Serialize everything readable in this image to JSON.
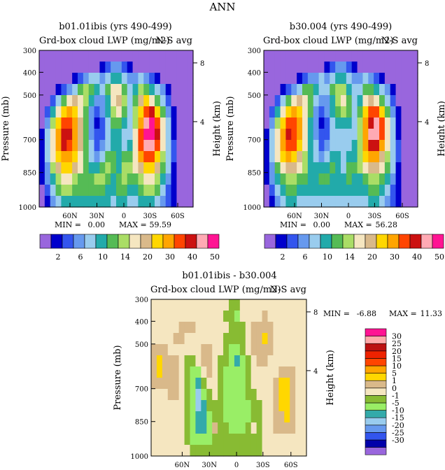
{
  "figure_title": "ANN",
  "palette_top": [
    "#9966dd",
    "#0000cc",
    "#3355ee",
    "#6699ee",
    "#99ccee",
    "#22aaaa",
    "#55bb55",
    "#aadd66",
    "#f5e6c0",
    "#d9b98a",
    "#ffd700",
    "#ffa500",
    "#ff4500",
    "#cc1111",
    "#ffaab4",
    "#ff1493"
  ],
  "palette_diff": [
    "#9966dd",
    "#0000aa",
    "#3355ee",
    "#6699ee",
    "#99ccee",
    "#33aaaa",
    "#99ee66",
    "#88bb33",
    "#f5e6c0",
    "#d9b98a",
    "#ffd700",
    "#ffa500",
    "#ff4500",
    "#ee2200",
    "#bb1111",
    "#ffaaaa",
    "#ff1493"
  ],
  "chart_data": [
    {
      "type": "heatmap",
      "title": "b01.01ibis (yrs 490-499)",
      "subtitle_left": "Grd-box cloud LWP (mg/m2)",
      "subtitle_right": "N-S avg",
      "ylabel": "Pressure (mb)",
      "y2label": "Height (km)",
      "xticks": [
        "60N",
        "30N",
        "0",
        "30S",
        "60S"
      ],
      "yticks": [
        "300",
        "400",
        "500",
        "700",
        "850",
        "1000"
      ],
      "y2ticks": [
        "8",
        "4"
      ],
      "min_label": "MIN =",
      "min_value": "0.00",
      "max_label": "MAX =",
      "max_value": "59.59",
      "levels": [
        "2",
        "6",
        "10",
        "14",
        "20",
        "30",
        "40",
        "50"
      ],
      "cells": [
        [
          0,
          0,
          0,
          0,
          0,
          0,
          0,
          0,
          0,
          0,
          0,
          0,
          0,
          0,
          0,
          0,
          0,
          0,
          0,
          0,
          0,
          0,
          0,
          0,
          0,
          0,
          0,
          0
        ],
        [
          0,
          0,
          0,
          0,
          0,
          0,
          0,
          0,
          0,
          0,
          0,
          1,
          2,
          3,
          3,
          2,
          1,
          0,
          0,
          0,
          0,
          0,
          0,
          0,
          0,
          0,
          0,
          0
        ],
        [
          0,
          0,
          0,
          0,
          0,
          0,
          1,
          2,
          3,
          4,
          4,
          3,
          4,
          5,
          5,
          4,
          3,
          3,
          4,
          3,
          2,
          1,
          0,
          0,
          0,
          0,
          0,
          0
        ],
        [
          0,
          0,
          0,
          1,
          2,
          3,
          4,
          6,
          7,
          6,
          5,
          4,
          6,
          8,
          8,
          6,
          4,
          5,
          7,
          6,
          5,
          4,
          3,
          1,
          0,
          0,
          0,
          0
        ],
        [
          0,
          0,
          2,
          4,
          6,
          8,
          9,
          8,
          7,
          5,
          3,
          3,
          5,
          8,
          9,
          7,
          4,
          6,
          9,
          10,
          8,
          6,
          4,
          2,
          0,
          0,
          0,
          0
        ],
        [
          0,
          2,
          5,
          8,
          10,
          11,
          10,
          8,
          6,
          3,
          2,
          3,
          5,
          7,
          8,
          6,
          4,
          7,
          10,
          12,
          13,
          10,
          6,
          3,
          1,
          0,
          0,
          0
        ],
        [
          0,
          3,
          7,
          10,
          12,
          12,
          11,
          9,
          6,
          3,
          1,
          2,
          4,
          6,
          6,
          5,
          4,
          7,
          11,
          14,
          15,
          12,
          8,
          4,
          1,
          0,
          0,
          0
        ],
        [
          1,
          4,
          8,
          11,
          13,
          13,
          11,
          9,
          6,
          3,
          2,
          2,
          4,
          5,
          5,
          4,
          4,
          8,
          12,
          15,
          15,
          13,
          8,
          4,
          1,
          0,
          0,
          0
        ],
        [
          1,
          4,
          8,
          11,
          13,
          12,
          11,
          9,
          6,
          4,
          2,
          3,
          4,
          5,
          5,
          4,
          5,
          8,
          12,
          14,
          14,
          12,
          8,
          4,
          2,
          0,
          0,
          0
        ],
        [
          1,
          4,
          8,
          10,
          11,
          11,
          10,
          8,
          6,
          4,
          3,
          4,
          6,
          6,
          5,
          6,
          6,
          8,
          11,
          12,
          12,
          10,
          7,
          4,
          2,
          0,
          0,
          0
        ],
        [
          1,
          3,
          7,
          9,
          10,
          10,
          9,
          8,
          6,
          5,
          5,
          6,
          7,
          6,
          5,
          7,
          7,
          8,
          9,
          10,
          10,
          9,
          6,
          4,
          1,
          0,
          0,
          0
        ],
        [
          1,
          3,
          5,
          7,
          8,
          8,
          7,
          6,
          6,
          6,
          7,
          7,
          6,
          5,
          6,
          7,
          6,
          6,
          7,
          8,
          8,
          7,
          5,
          3,
          1,
          0,
          0,
          0
        ],
        [
          0,
          2,
          4,
          6,
          7,
          7,
          6,
          6,
          6,
          6,
          6,
          6,
          5,
          5,
          6,
          6,
          5,
          5,
          6,
          7,
          7,
          6,
          4,
          2,
          1,
          0,
          0,
          0
        ],
        [
          0,
          1,
          3,
          4,
          5,
          5,
          5,
          5,
          5,
          5,
          5,
          5,
          5,
          4,
          5,
          5,
          4,
          4,
          5,
          5,
          5,
          4,
          3,
          2,
          1,
          0,
          0,
          0
        ]
      ]
    },
    {
      "type": "heatmap",
      "title": "b30.004 (yrs 490-499)",
      "subtitle_left": "Grd-box cloud LWP (mg/m2)",
      "subtitle_right": "N-S avg",
      "ylabel": "Pressure (mb)",
      "y2label": "Height (km)",
      "xticks": [
        "60N",
        "30N",
        "0",
        "30S",
        "60S"
      ],
      "yticks": [
        "300",
        "400",
        "500",
        "700",
        "850",
        "1000"
      ],
      "y2ticks": [
        "8",
        "4"
      ],
      "min_label": "MIN =",
      "min_value": "0.00",
      "max_label": "MAX =",
      "max_value": "56.28",
      "levels": [
        "2",
        "6",
        "10",
        "14",
        "20",
        "30",
        "40",
        "50"
      ],
      "cells": [
        [
          0,
          0,
          0,
          0,
          0,
          0,
          0,
          0,
          0,
          0,
          0,
          0,
          0,
          0,
          0,
          0,
          0,
          0,
          0,
          0,
          0,
          0,
          0,
          0,
          0,
          0,
          0,
          0
        ],
        [
          0,
          0,
          0,
          0,
          0,
          0,
          0,
          0,
          0,
          0,
          0,
          1,
          2,
          3,
          3,
          2,
          1,
          0,
          0,
          0,
          0,
          0,
          0,
          0,
          0,
          0,
          0,
          0
        ],
        [
          0,
          0,
          0,
          0,
          0,
          0,
          1,
          2,
          3,
          3,
          4,
          3,
          4,
          5,
          5,
          4,
          3,
          3,
          4,
          3,
          2,
          1,
          0,
          0,
          0,
          0,
          0,
          0
        ],
        [
          0,
          0,
          0,
          1,
          2,
          3,
          4,
          6,
          6,
          5,
          4,
          4,
          6,
          7,
          7,
          5,
          4,
          4,
          6,
          6,
          5,
          4,
          3,
          1,
          0,
          0,
          0,
          0
        ],
        [
          0,
          0,
          2,
          4,
          6,
          8,
          9,
          8,
          6,
          4,
          3,
          3,
          5,
          7,
          8,
          6,
          4,
          5,
          8,
          9,
          8,
          6,
          4,
          2,
          0,
          0,
          0,
          0
        ],
        [
          0,
          2,
          5,
          8,
          10,
          11,
          10,
          8,
          6,
          3,
          2,
          3,
          5,
          6,
          7,
          6,
          4,
          6,
          10,
          12,
          12,
          10,
          6,
          3,
          1,
          0,
          0,
          0
        ],
        [
          0,
          3,
          7,
          10,
          12,
          12,
          11,
          8,
          5,
          3,
          1,
          2,
          4,
          5,
          5,
          5,
          4,
          7,
          11,
          13,
          14,
          12,
          8,
          4,
          1,
          0,
          0,
          0
        ],
        [
          1,
          4,
          8,
          11,
          13,
          12,
          11,
          8,
          5,
          3,
          2,
          2,
          4,
          4,
          4,
          4,
          4,
          7,
          11,
          14,
          14,
          12,
          8,
          4,
          1,
          0,
          0,
          0
        ],
        [
          1,
          4,
          8,
          11,
          12,
          12,
          10,
          8,
          5,
          4,
          2,
          3,
          4,
          4,
          4,
          4,
          5,
          7,
          11,
          13,
          13,
          11,
          8,
          4,
          2,
          0,
          0,
          0
        ],
        [
          1,
          4,
          8,
          10,
          11,
          10,
          9,
          7,
          5,
          4,
          3,
          4,
          5,
          5,
          4,
          5,
          5,
          7,
          10,
          11,
          11,
          9,
          7,
          4,
          2,
          0,
          0,
          0
        ],
        [
          1,
          3,
          6,
          8,
          9,
          9,
          8,
          7,
          5,
          5,
          5,
          5,
          6,
          5,
          4,
          6,
          6,
          7,
          8,
          9,
          9,
          8,
          6,
          4,
          1,
          0,
          0,
          0
        ],
        [
          1,
          3,
          5,
          6,
          7,
          7,
          6,
          6,
          5,
          5,
          6,
          6,
          5,
          5,
          5,
          6,
          5,
          5,
          6,
          7,
          7,
          6,
          5,
          3,
          1,
          0,
          0,
          0
        ],
        [
          0,
          2,
          4,
          5,
          6,
          6,
          5,
          5,
          5,
          5,
          5,
          5,
          5,
          5,
          5,
          5,
          5,
          5,
          5,
          6,
          6,
          5,
          4,
          2,
          1,
          0,
          0,
          0
        ],
        [
          0,
          1,
          3,
          4,
          5,
          5,
          4,
          4,
          4,
          4,
          4,
          4,
          4,
          4,
          4,
          4,
          4,
          4,
          4,
          5,
          5,
          4,
          3,
          2,
          1,
          0,
          0,
          0
        ]
      ]
    },
    {
      "type": "heatmap",
      "title": "b01.01ibis - b30.004",
      "subtitle_left": "Grd-box cloud LWP (mg/m2)",
      "subtitle_right": "N-S avg",
      "ylabel": "Pressure (mb)",
      "y2label": "Height (km)",
      "xticks": [
        "60N",
        "30N",
        "0",
        "30S",
        "60S"
      ],
      "yticks": [
        "300",
        "400",
        "500",
        "700",
        "850",
        "1000"
      ],
      "y2ticks": [
        "8",
        "4"
      ],
      "min_label": "MIN =",
      "min_value": "-6.88",
      "max_label": "MAX =",
      "max_value": "11.33",
      "levels": [
        "30",
        "25",
        "20",
        "15",
        "10",
        "5",
        "1",
        "0",
        "-1",
        "-5",
        "-10",
        "-15",
        "-20",
        "-25",
        "-30"
      ],
      "cells": [
        [
          8,
          8,
          8,
          8,
          8,
          8,
          8,
          8,
          8,
          8,
          8,
          8,
          8,
          8,
          7,
          7,
          8,
          8,
          8,
          8,
          8,
          8,
          8,
          8,
          8,
          8,
          8,
          8
        ],
        [
          8,
          8,
          8,
          8,
          8,
          8,
          8,
          8,
          8,
          8,
          8,
          8,
          8,
          7,
          7,
          6,
          8,
          8,
          8,
          8,
          9,
          8,
          8,
          8,
          8,
          8,
          8,
          8
        ],
        [
          8,
          8,
          8,
          8,
          8,
          9,
          9,
          9,
          8,
          8,
          8,
          8,
          8,
          8,
          7,
          7,
          7,
          8,
          9,
          9,
          9,
          9,
          8,
          8,
          8,
          8,
          8,
          8
        ],
        [
          8,
          8,
          8,
          8,
          9,
          9,
          8,
          8,
          8,
          8,
          8,
          8,
          8,
          7,
          7,
          7,
          7,
          8,
          9,
          9,
          10,
          9,
          8,
          8,
          8,
          8,
          8,
          8
        ],
        [
          9,
          9,
          9,
          8,
          8,
          8,
          8,
          8,
          8,
          9,
          9,
          8,
          8,
          7,
          6,
          6,
          7,
          8,
          9,
          9,
          9,
          9,
          8,
          8,
          8,
          8,
          8,
          8
        ],
        [
          9,
          10,
          9,
          9,
          9,
          8,
          7,
          7,
          8,
          9,
          9,
          8,
          7,
          7,
          6,
          5,
          6,
          7,
          8,
          9,
          9,
          8,
          8,
          8,
          8,
          8,
          8,
          8
        ],
        [
          9,
          10,
          9,
          9,
          9,
          8,
          7,
          6,
          6,
          8,
          9,
          8,
          7,
          6,
          6,
          6,
          6,
          7,
          8,
          8,
          8,
          8,
          8,
          9,
          9,
          9,
          8,
          8
        ],
        [
          9,
          9,
          9,
          9,
          9,
          8,
          7,
          6,
          5,
          7,
          8,
          8,
          7,
          6,
          6,
          6,
          6,
          7,
          8,
          8,
          8,
          8,
          9,
          10,
          10,
          9,
          8,
          8
        ],
        [
          8,
          8,
          8,
          9,
          9,
          8,
          7,
          6,
          4,
          6,
          7,
          8,
          7,
          6,
          6,
          6,
          6,
          7,
          7,
          8,
          8,
          8,
          9,
          10,
          10,
          9,
          8,
          8
        ],
        [
          8,
          8,
          8,
          8,
          8,
          8,
          7,
          6,
          4,
          5,
          7,
          7,
          7,
          6,
          6,
          6,
          6,
          6,
          7,
          7,
          8,
          8,
          9,
          10,
          10,
          9,
          8,
          8
        ],
        [
          8,
          8,
          8,
          8,
          8,
          8,
          7,
          6,
          5,
          5,
          6,
          7,
          7,
          6,
          6,
          6,
          6,
          6,
          7,
          7,
          8,
          8,
          9,
          9,
          10,
          9,
          8,
          8
        ],
        [
          8,
          8,
          8,
          8,
          8,
          8,
          7,
          6,
          5,
          5,
          6,
          9,
          7,
          7,
          6,
          6,
          6,
          7,
          8,
          7,
          8,
          8,
          9,
          9,
          9,
          9,
          8,
          8
        ],
        [
          8,
          8,
          8,
          8,
          8,
          8,
          7,
          6,
          6,
          6,
          6,
          7,
          7,
          7,
          7,
          7,
          7,
          7,
          7,
          7,
          8,
          8,
          8,
          8,
          8,
          8,
          8,
          8
        ],
        [
          8,
          8,
          8,
          8,
          8,
          8,
          8,
          7,
          7,
          7,
          7,
          7,
          7,
          7,
          7,
          7,
          7,
          7,
          7,
          7,
          8,
          8,
          8,
          8,
          8,
          8,
          8,
          8
        ]
      ]
    }
  ]
}
